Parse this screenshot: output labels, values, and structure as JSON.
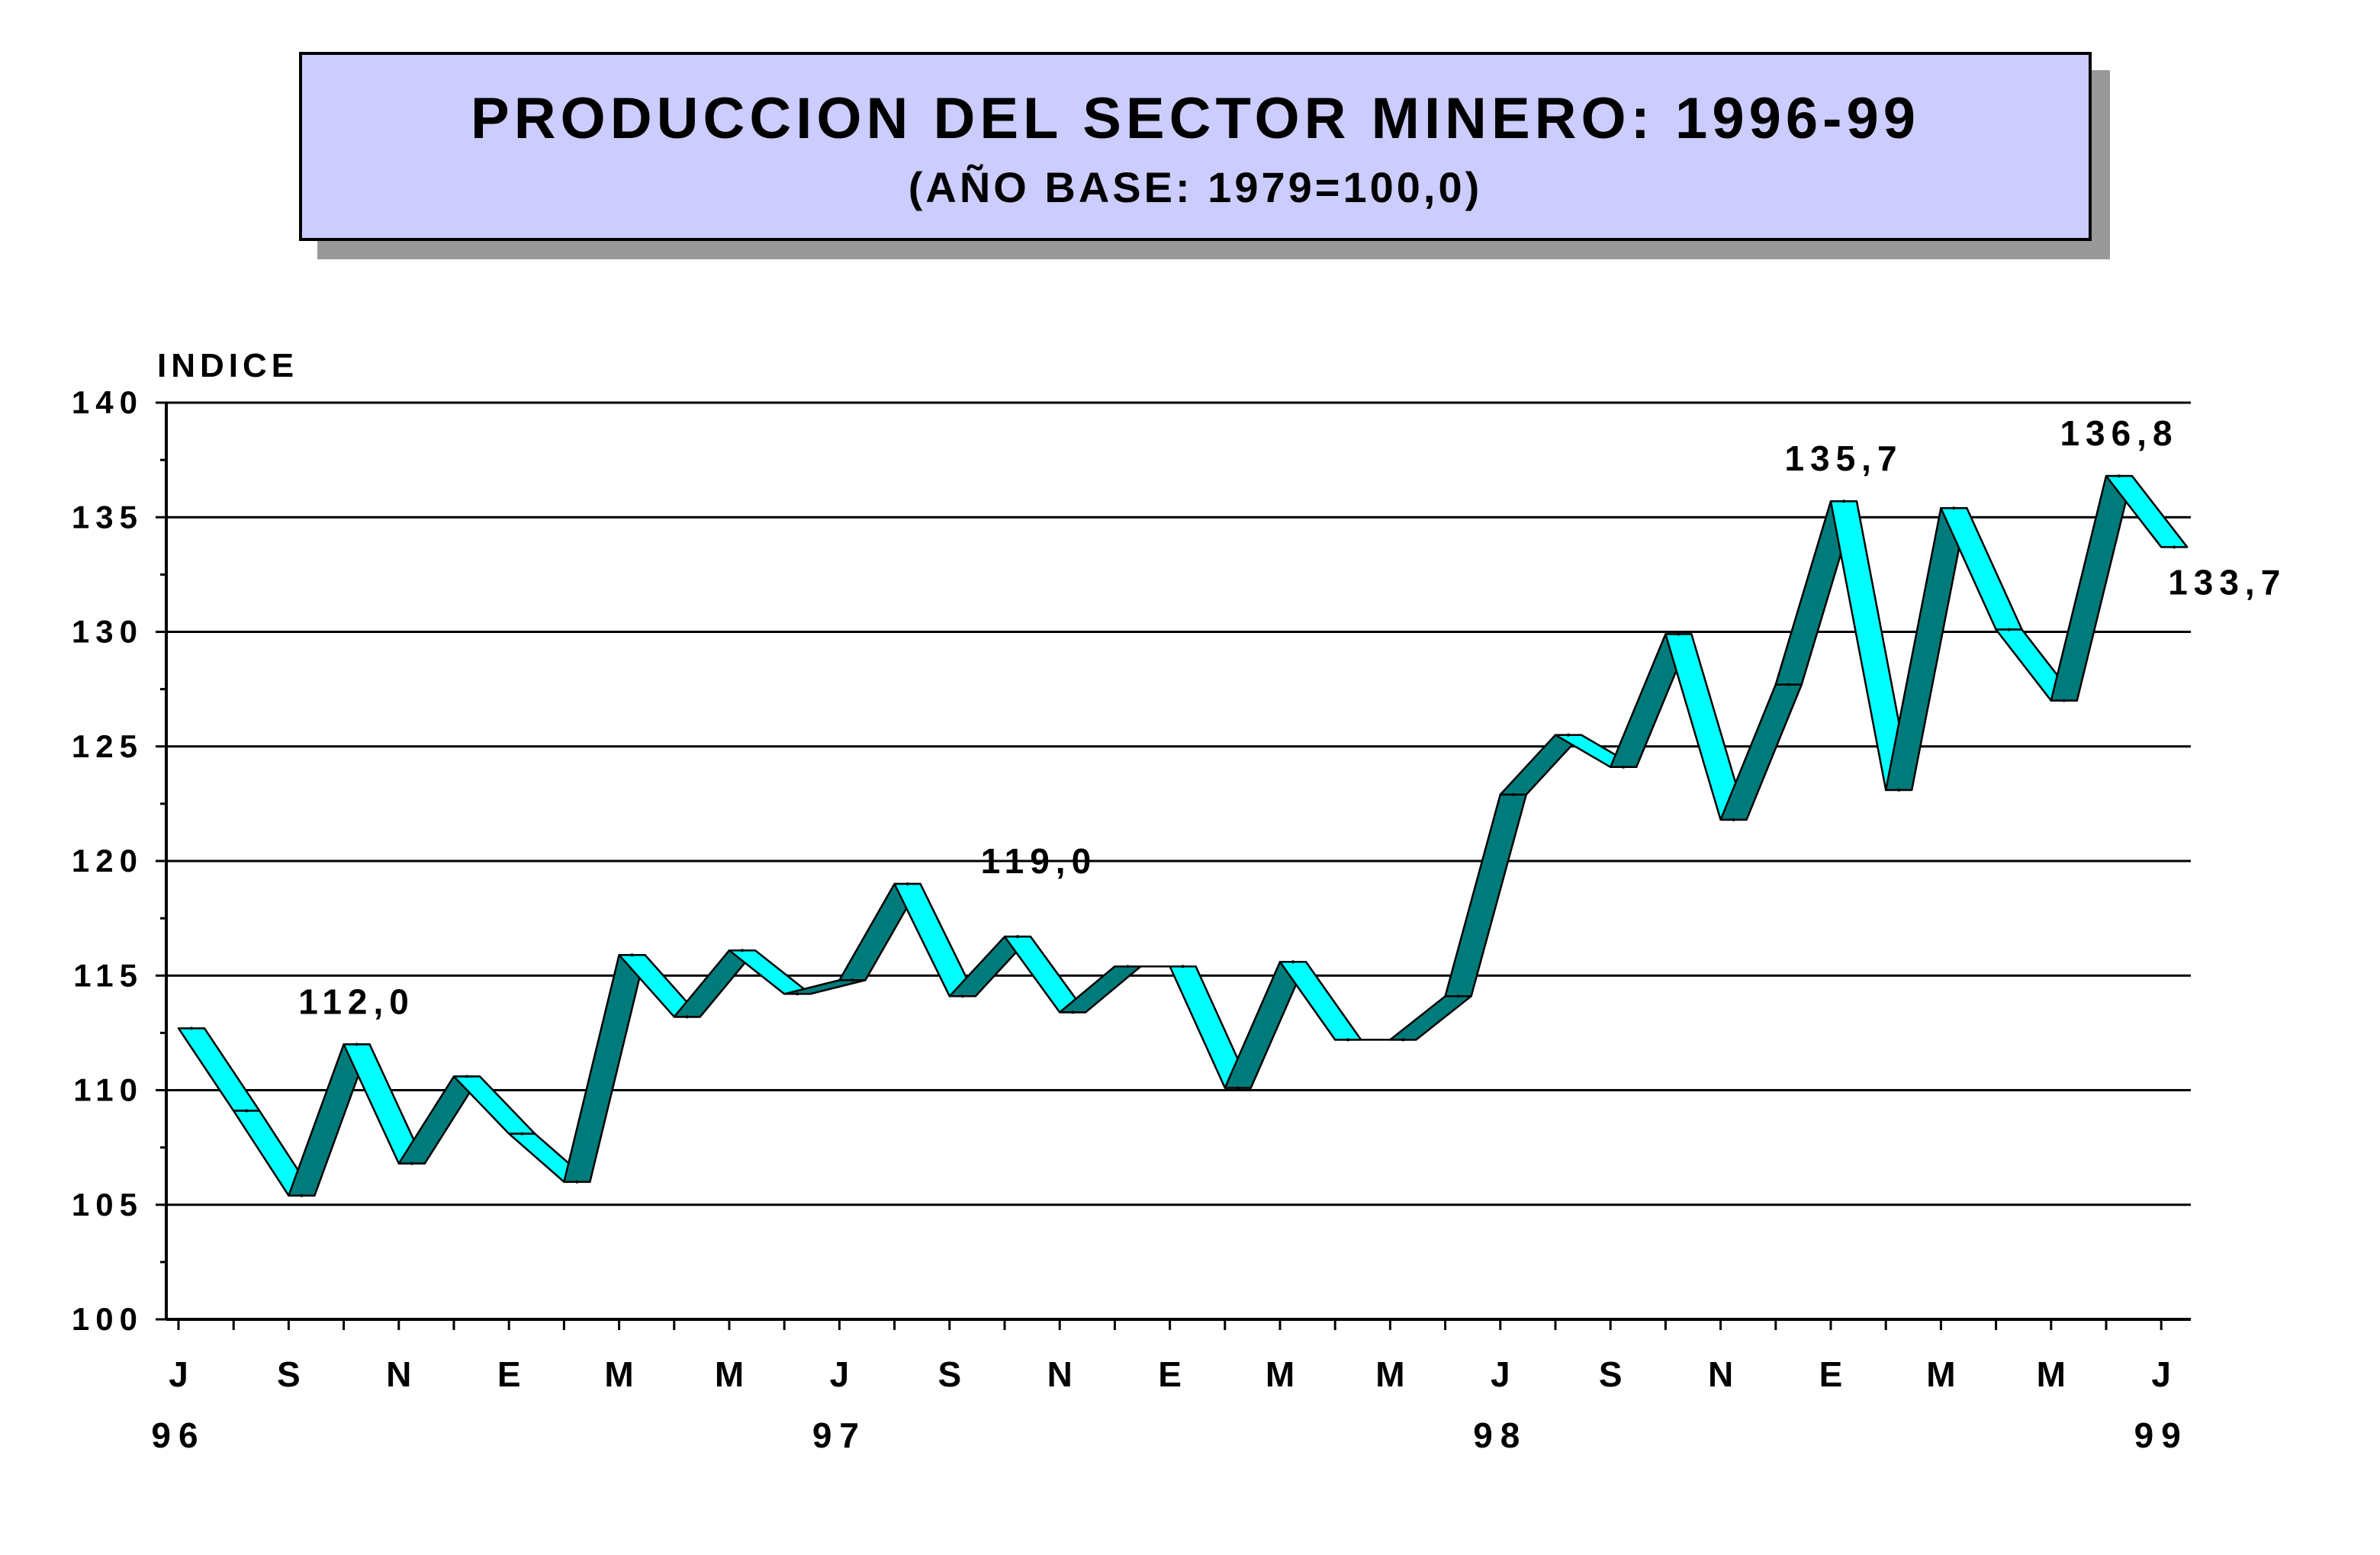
{
  "chart_data": {
    "type": "line",
    "title": "PRODUCCION DEL SECTOR MINERO: 1996-99",
    "subtitle": "(AÑO BASE: 1979=100,0)",
    "ylabel": "INDICE",
    "xlabel": "",
    "ylim": [
      100,
      140
    ],
    "yticks": [
      100,
      105,
      110,
      115,
      120,
      125,
      130,
      135,
      140
    ],
    "ytick_labels": [
      "100",
      "105",
      "110",
      "115",
      "120",
      "125",
      "130",
      "135",
      "140"
    ],
    "grid": true,
    "x": [
      "Jul-96",
      "Aug-96",
      "Sep-96",
      "Oct-96",
      "Nov-96",
      "Dec-96",
      "Jan-97",
      "Feb-97",
      "Mar-97",
      "Apr-97",
      "May-97",
      "Jun-97",
      "Jul-97",
      "Aug-97",
      "Sep-97",
      "Oct-97",
      "Nov-97",
      "Dec-97",
      "Jan-98",
      "Feb-98",
      "Mar-98",
      "Apr-98",
      "May-98",
      "Jun-98",
      "Jul-98",
      "Aug-98",
      "Sep-98",
      "Oct-98",
      "Nov-98",
      "Dec-98",
      "Jan-99",
      "Feb-99",
      "Mar-99",
      "Apr-99",
      "May-99",
      "Jun-99",
      "Jul-99"
    ],
    "values": [
      112.7,
      109.1,
      105.4,
      112.0,
      106.8,
      110.6,
      108.1,
      106.0,
      115.9,
      113.2,
      116.1,
      114.2,
      114.8,
      119.0,
      114.1,
      116.7,
      113.4,
      115.4,
      115.4,
      110.1,
      115.6,
      112.2,
      112.2,
      114.1,
      122.9,
      125.5,
      124.1,
      129.9,
      121.8,
      127.7,
      135.7,
      123.1,
      135.4,
      130.1,
      127.0,
      136.8,
      133.7
    ],
    "month_labels": [
      "J",
      "S",
      "N",
      "E",
      "M",
      "M",
      "J",
      "S",
      "N",
      "E",
      "M",
      "M",
      "J",
      "S",
      "N",
      "E",
      "M",
      "M",
      "J"
    ],
    "year_labels": [
      "96",
      "97",
      "98",
      "99"
    ],
    "annotations": [
      {
        "index": 3,
        "text": "112,0"
      },
      {
        "index": 13,
        "text": "119,0"
      },
      {
        "index": 30,
        "text": "135,7"
      },
      {
        "index": 35,
        "text": "136,8"
      },
      {
        "index": 36,
        "text": "133,7"
      }
    ],
    "colors": {
      "rising": "#007b7b",
      "falling": "#00ffff",
      "grid": "#000000",
      "title_bg": "#ccccff"
    }
  }
}
